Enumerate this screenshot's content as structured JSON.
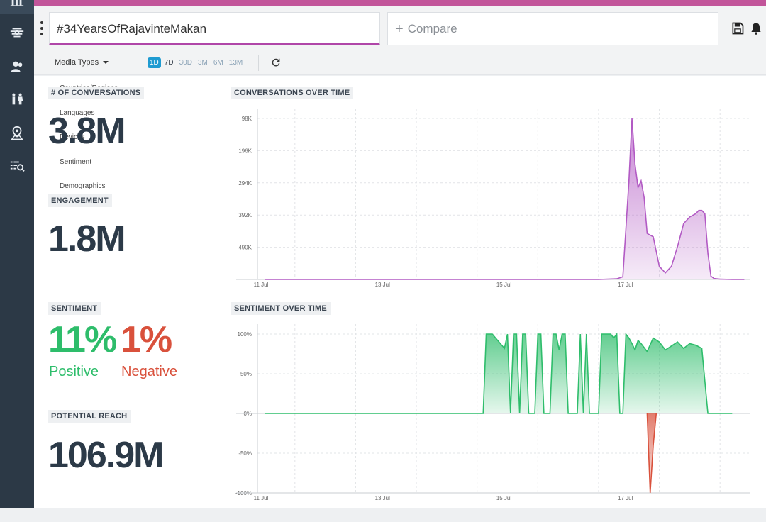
{
  "header": {
    "search_value": "#34YearsOfRajavinteMakan",
    "compare_label": "Compare"
  },
  "toolbar": {
    "media_types": "Media Types",
    "ranges": [
      "1D",
      "7D",
      "30D",
      "3M",
      "6M",
      "13M"
    ],
    "active_range": "1D"
  },
  "dropdown_menu": [
    "Countries/Regions",
    "Languages",
    "Devices",
    "Sentiment",
    "Demographics"
  ],
  "sidebar": {
    "icons": [
      "bar-chart-icon",
      "stream-icon",
      "users-icon",
      "gender-icon",
      "location-pin-icon",
      "list-search-icon"
    ]
  },
  "stats": {
    "conversations_label": "# OF CONVERSATIONS",
    "conversations_value": "3.8M",
    "engagement_label": "ENGAGEMENT",
    "engagement_value": "1.8M",
    "sentiment_label": "SENTIMENT",
    "positive_value": "11%",
    "positive_label": "Positive",
    "negative_value": "1%",
    "negative_label": "Negative",
    "reach_label": "POTENTIAL REACH",
    "reach_value": "106.9M"
  },
  "colors": {
    "accent": "#c2559a",
    "sidebar": "#2c3946",
    "positive": "#2ebd6b",
    "negative": "#d9513c",
    "conversations_line": "#b25ac4",
    "range_active": "#1f9bd1"
  },
  "chart_data": [
    {
      "type": "area",
      "title": "CONVERSATIONS OVER TIME",
      "x_ticks": [
        "11 Jul",
        "13 Jul",
        "15 Jul",
        "17 Jul"
      ],
      "y_ticks": [
        "98K",
        "196K",
        "294K",
        "392K",
        "490K"
      ],
      "ylim": [
        0,
        490000
      ],
      "series": [
        {
          "x": [
            0,
            0.5,
            1,
            1.5,
            2,
            2.5,
            3,
            3.5,
            4,
            4.5,
            5,
            5.5,
            5.8,
            5.9,
            6.0,
            6.05,
            6.1,
            6.15,
            6.2,
            6.25,
            6.3,
            6.4,
            6.5,
            6.6,
            6.7,
            6.8,
            6.9,
            7.0,
            7.1,
            7.15,
            7.2,
            7.25,
            7.3,
            7.35,
            7.4,
            7.5,
            7.7,
            7.9
          ],
          "y": [
            0,
            0,
            0,
            0,
            0,
            0,
            0,
            0,
            0,
            0,
            0,
            0,
            2000,
            8000,
            300000,
            490000,
            350000,
            280000,
            300000,
            250000,
            140000,
            130000,
            40000,
            20000,
            40000,
            100000,
            170000,
            190000,
            200000,
            210000,
            210000,
            200000,
            80000,
            10000,
            3000,
            1000,
            0,
            0
          ]
        }
      ],
      "grid": true
    },
    {
      "type": "area",
      "title": "SENTIMENT OVER TIME",
      "x_ticks": [
        "11 Jul",
        "13 Jul",
        "15 Jul",
        "17 Jul"
      ],
      "y_ticks": [
        "100%",
        "50%",
        "0%",
        "-50%",
        "-100%"
      ],
      "ylim": [
        -100,
        100
      ],
      "series": [
        {
          "name": "positive",
          "x": [
            0,
            1,
            2,
            3,
            3.6,
            3.65,
            3.7,
            3.75,
            3.95,
            4.0,
            4.05,
            4.1,
            4.15,
            4.2,
            4.25,
            4.3,
            4.35,
            4.4,
            4.45,
            4.5,
            4.55,
            4.6,
            4.7,
            4.75,
            4.8,
            4.85,
            4.9,
            4.95,
            5.0,
            5.05,
            5.1,
            5.15,
            5.2,
            5.25,
            5.3,
            5.35,
            5.4,
            5.5,
            5.55,
            5.6,
            5.65,
            5.7,
            5.75,
            5.8,
            5.85,
            5.9,
            5.95,
            6.0,
            6.05,
            6.1,
            6.15,
            6.2,
            6.3,
            6.4,
            6.5,
            6.6,
            6.7,
            6.8,
            6.9,
            7.0,
            7.1,
            7.2,
            7.3,
            7.35,
            7.4,
            7.7
          ],
          "y": [
            0,
            0,
            0,
            0,
            0,
            100,
            100,
            100,
            82,
            100,
            0,
            100,
            100,
            0,
            100,
            100,
            0,
            0,
            0,
            100,
            100,
            0,
            0,
            100,
            100,
            80,
            100,
            100,
            0,
            0,
            0,
            0,
            100,
            0,
            100,
            0,
            0,
            0,
            100,
            100,
            100,
            100,
            95,
            100,
            0,
            0,
            100,
            95,
            88,
            80,
            92,
            88,
            78,
            95,
            90,
            80,
            85,
            90,
            82,
            88,
            86,
            82,
            0,
            0,
            0,
            0
          ]
        },
        {
          "name": "negative",
          "x": [
            6.3,
            6.35,
            6.4,
            6.45
          ],
          "y": [
            0,
            -100,
            -40,
            0
          ]
        }
      ],
      "grid": true
    }
  ]
}
